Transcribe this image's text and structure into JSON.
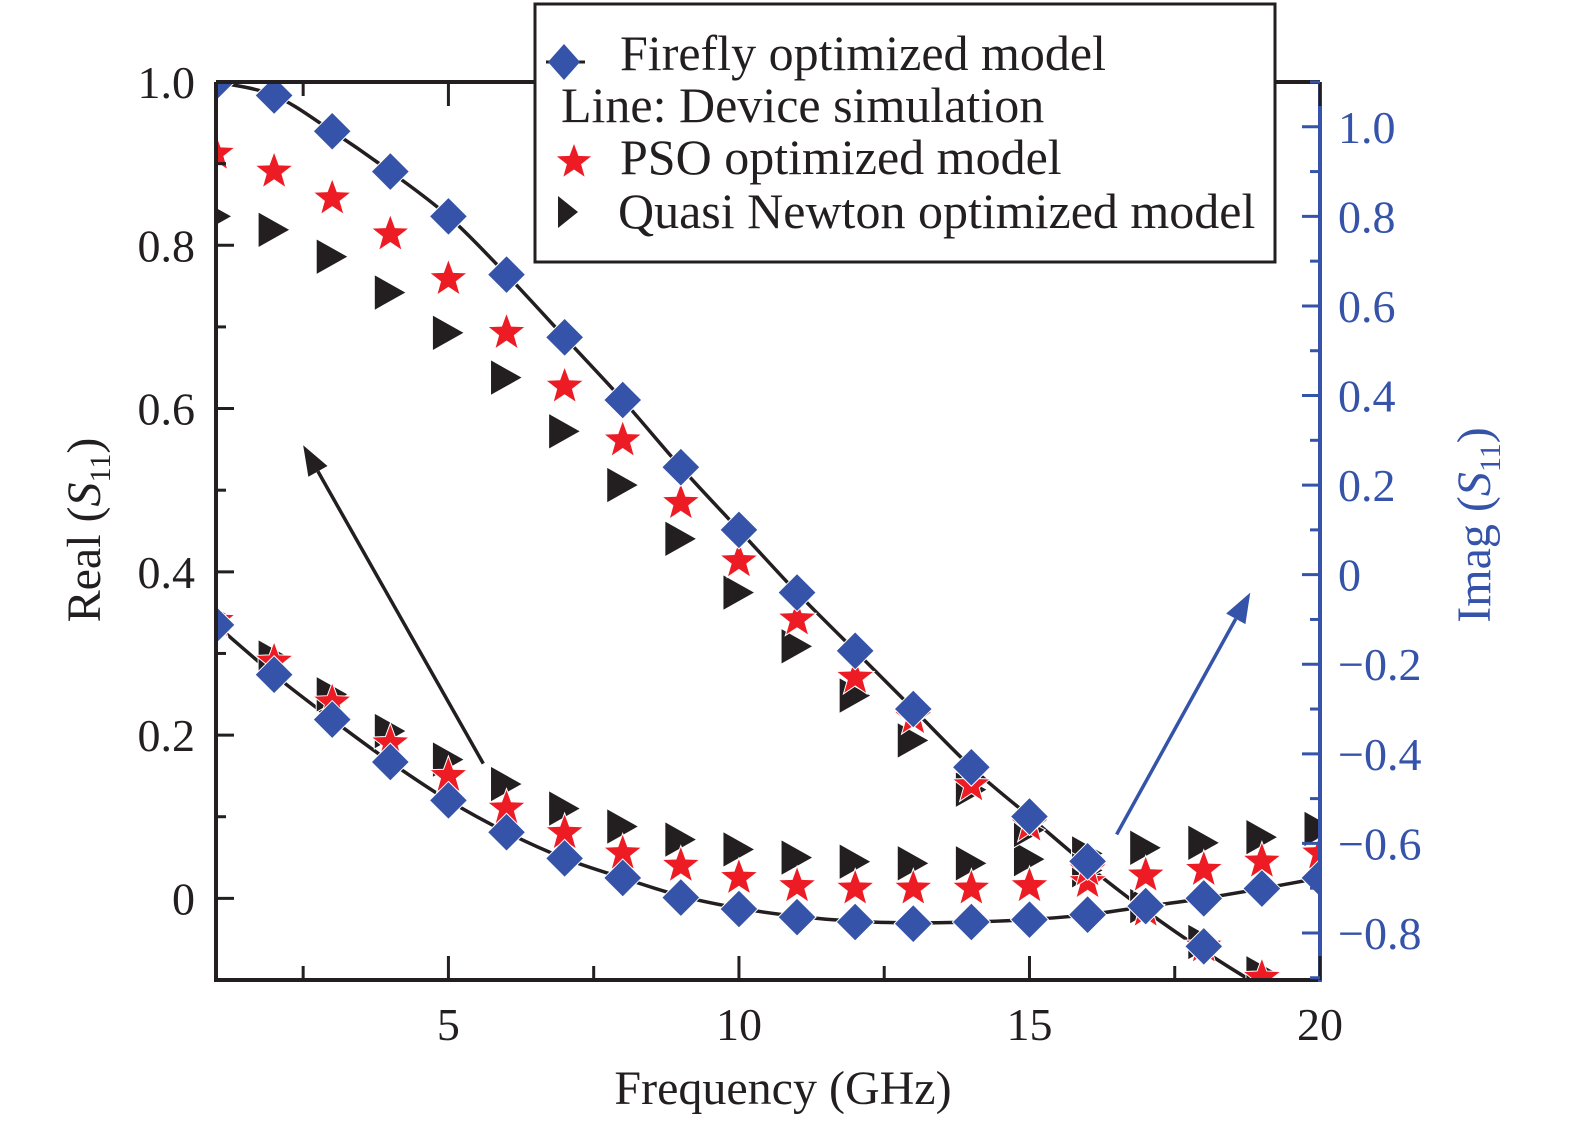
{
  "chart_data": {
    "type": "scatter",
    "title": "",
    "xlabel": "Frequency (GHz)",
    "ylabel_left": "Real (S11)",
    "ylabel_right": "Imag (S11)",
    "xlim": [
      1,
      20
    ],
    "ylim_left": [
      -0.1,
      1.0
    ],
    "ylim_right": [
      -0.905,
      1.1
    ],
    "x_ticks": [
      5,
      10,
      15,
      20
    ],
    "x_tick_labels": [
      "5",
      "10",
      "15",
      "20"
    ],
    "y_left_ticks": [
      0,
      0.2,
      0.4,
      0.6,
      0.8,
      1.0
    ],
    "y_left_tick_labels": [
      "0",
      "0.2",
      "0.4",
      "0.6",
      "0.8",
      "1.0"
    ],
    "y_right_ticks": [
      -0.8,
      -0.6,
      -0.4,
      -0.2,
      0,
      0.2,
      0.4,
      0.6,
      0.8,
      1.0
    ],
    "y_right_tick_labels": [
      "−0.8",
      "−0.6",
      "−0.4",
      "−0.2",
      "0",
      "0.2",
      "0.4",
      "0.6",
      "0.8",
      "1.0"
    ],
    "grid": false,
    "legend_position": "top-right",
    "legend": [
      {
        "label": "Firefly optimized model",
        "marker": "diamond",
        "color": "#3553a9"
      },
      {
        "label": "Line: Device simulation",
        "marker": "none",
        "color": "#231f20"
      },
      {
        "label": "PSO optimized model",
        "marker": "star",
        "color": "#ed1c24"
      },
      {
        "label": "Quasi Newton optimized model",
        "marker": "triangle-right",
        "color": "#231f20"
      }
    ],
    "colors": {
      "axis_left": "#231f20",
      "axis_right": "#3553a9",
      "firefly": "#3553a9",
      "pso": "#ed1c24",
      "quasi_newton": "#231f20",
      "simulation": "#231f20"
    },
    "x": [
      1,
      2,
      3,
      4,
      5,
      6,
      7,
      8,
      9,
      10,
      11,
      12,
      13,
      14,
      15,
      16,
      17,
      18,
      19,
      20
    ],
    "series": [
      {
        "name": "Device simulation (Real)",
        "axis": "left",
        "kind": "line",
        "values": [
          0.335,
          0.274,
          0.219,
          0.167,
          0.12,
          0.081,
          0.049,
          0.025,
          0.003,
          -0.012,
          -0.022,
          -0.028,
          -0.03,
          -0.029,
          -0.026,
          -0.02,
          -0.01,
          0.0,
          0.012,
          0.025
        ]
      },
      {
        "name": "Device simulation (Imag)",
        "axis": "right",
        "kind": "line",
        "values": [
          1.1,
          1.07,
          0.99,
          0.9,
          0.8,
          0.67,
          0.53,
          0.39,
          0.24,
          0.1,
          -0.04,
          -0.17,
          -0.3,
          -0.43,
          -0.54,
          -0.65,
          -0.75,
          -0.84,
          -0.92,
          -0.98
        ]
      },
      {
        "name": "Firefly optimized model (Real)",
        "axis": "left",
        "kind": "diamond",
        "values": [
          0.335,
          0.274,
          0.219,
          0.167,
          0.12,
          0.081,
          0.049,
          0.025,
          0.001,
          -0.013,
          -0.023,
          -0.029,
          -0.031,
          -0.029,
          -0.026,
          -0.02,
          -0.009,
          0.0,
          0.012,
          0.025
        ]
      },
      {
        "name": "Firefly optimized model (Imag)",
        "axis": "right",
        "kind": "diamond",
        "values": [
          1.1,
          1.07,
          0.99,
          0.9,
          0.8,
          0.67,
          0.53,
          0.39,
          0.24,
          0.1,
          -0.04,
          -0.17,
          -0.3,
          -0.43,
          -0.54,
          -0.64,
          -0.74,
          -0.83,
          null,
          null
        ]
      },
      {
        "name": "PSO optimized model (Real)",
        "axis": "left",
        "kind": "star",
        "values": [
          0.34,
          0.29,
          0.24,
          0.19,
          0.15,
          0.11,
          0.08,
          0.055,
          0.04,
          0.025,
          0.015,
          0.012,
          0.012,
          0.012,
          0.015,
          0.02,
          0.028,
          0.035,
          0.045,
          0.055
        ]
      },
      {
        "name": "PSO optimized model (Imag)",
        "axis": "right",
        "kind": "star",
        "values": [
          0.94,
          0.9,
          0.84,
          0.76,
          0.66,
          0.54,
          0.42,
          0.3,
          0.16,
          0.03,
          -0.1,
          -0.23,
          -0.32,
          -0.47,
          -0.56,
          -0.66,
          -0.75,
          -0.83,
          -0.9,
          null
        ]
      },
      {
        "name": "Quasi Newton optimized model (Real)",
        "axis": "left",
        "kind": "triangle",
        "values": [
          0.345,
          0.295,
          0.25,
          0.205,
          0.17,
          0.14,
          0.11,
          0.088,
          0.072,
          0.06,
          0.05,
          0.045,
          0.043,
          0.043,
          0.048,
          0.055,
          0.062,
          0.068,
          0.075,
          0.085
        ]
      },
      {
        "name": "Quasi Newton optimized model (Imag)",
        "axis": "right",
        "kind": "triangle",
        "values": [
          0.8,
          0.77,
          0.71,
          0.63,
          0.54,
          0.44,
          0.32,
          0.2,
          0.08,
          -0.04,
          -0.16,
          -0.27,
          -0.37,
          -0.48,
          -0.57,
          -0.66,
          -0.74,
          -0.82,
          -0.89,
          null
        ]
      }
    ],
    "annotations": [
      {
        "type": "arrow",
        "color": "#231f20",
        "from": [
          5.6,
          0.165
        ],
        "to": [
          2.5,
          0.555
        ],
        "axis": "left",
        "meaning": "points to Real axis"
      },
      {
        "type": "arrow",
        "color": "#3553a9",
        "from": [
          16.5,
          -0.58
        ],
        "to": [
          18.8,
          -0.04
        ],
        "axis": "right",
        "meaning": "points to Imag axis"
      }
    ]
  }
}
